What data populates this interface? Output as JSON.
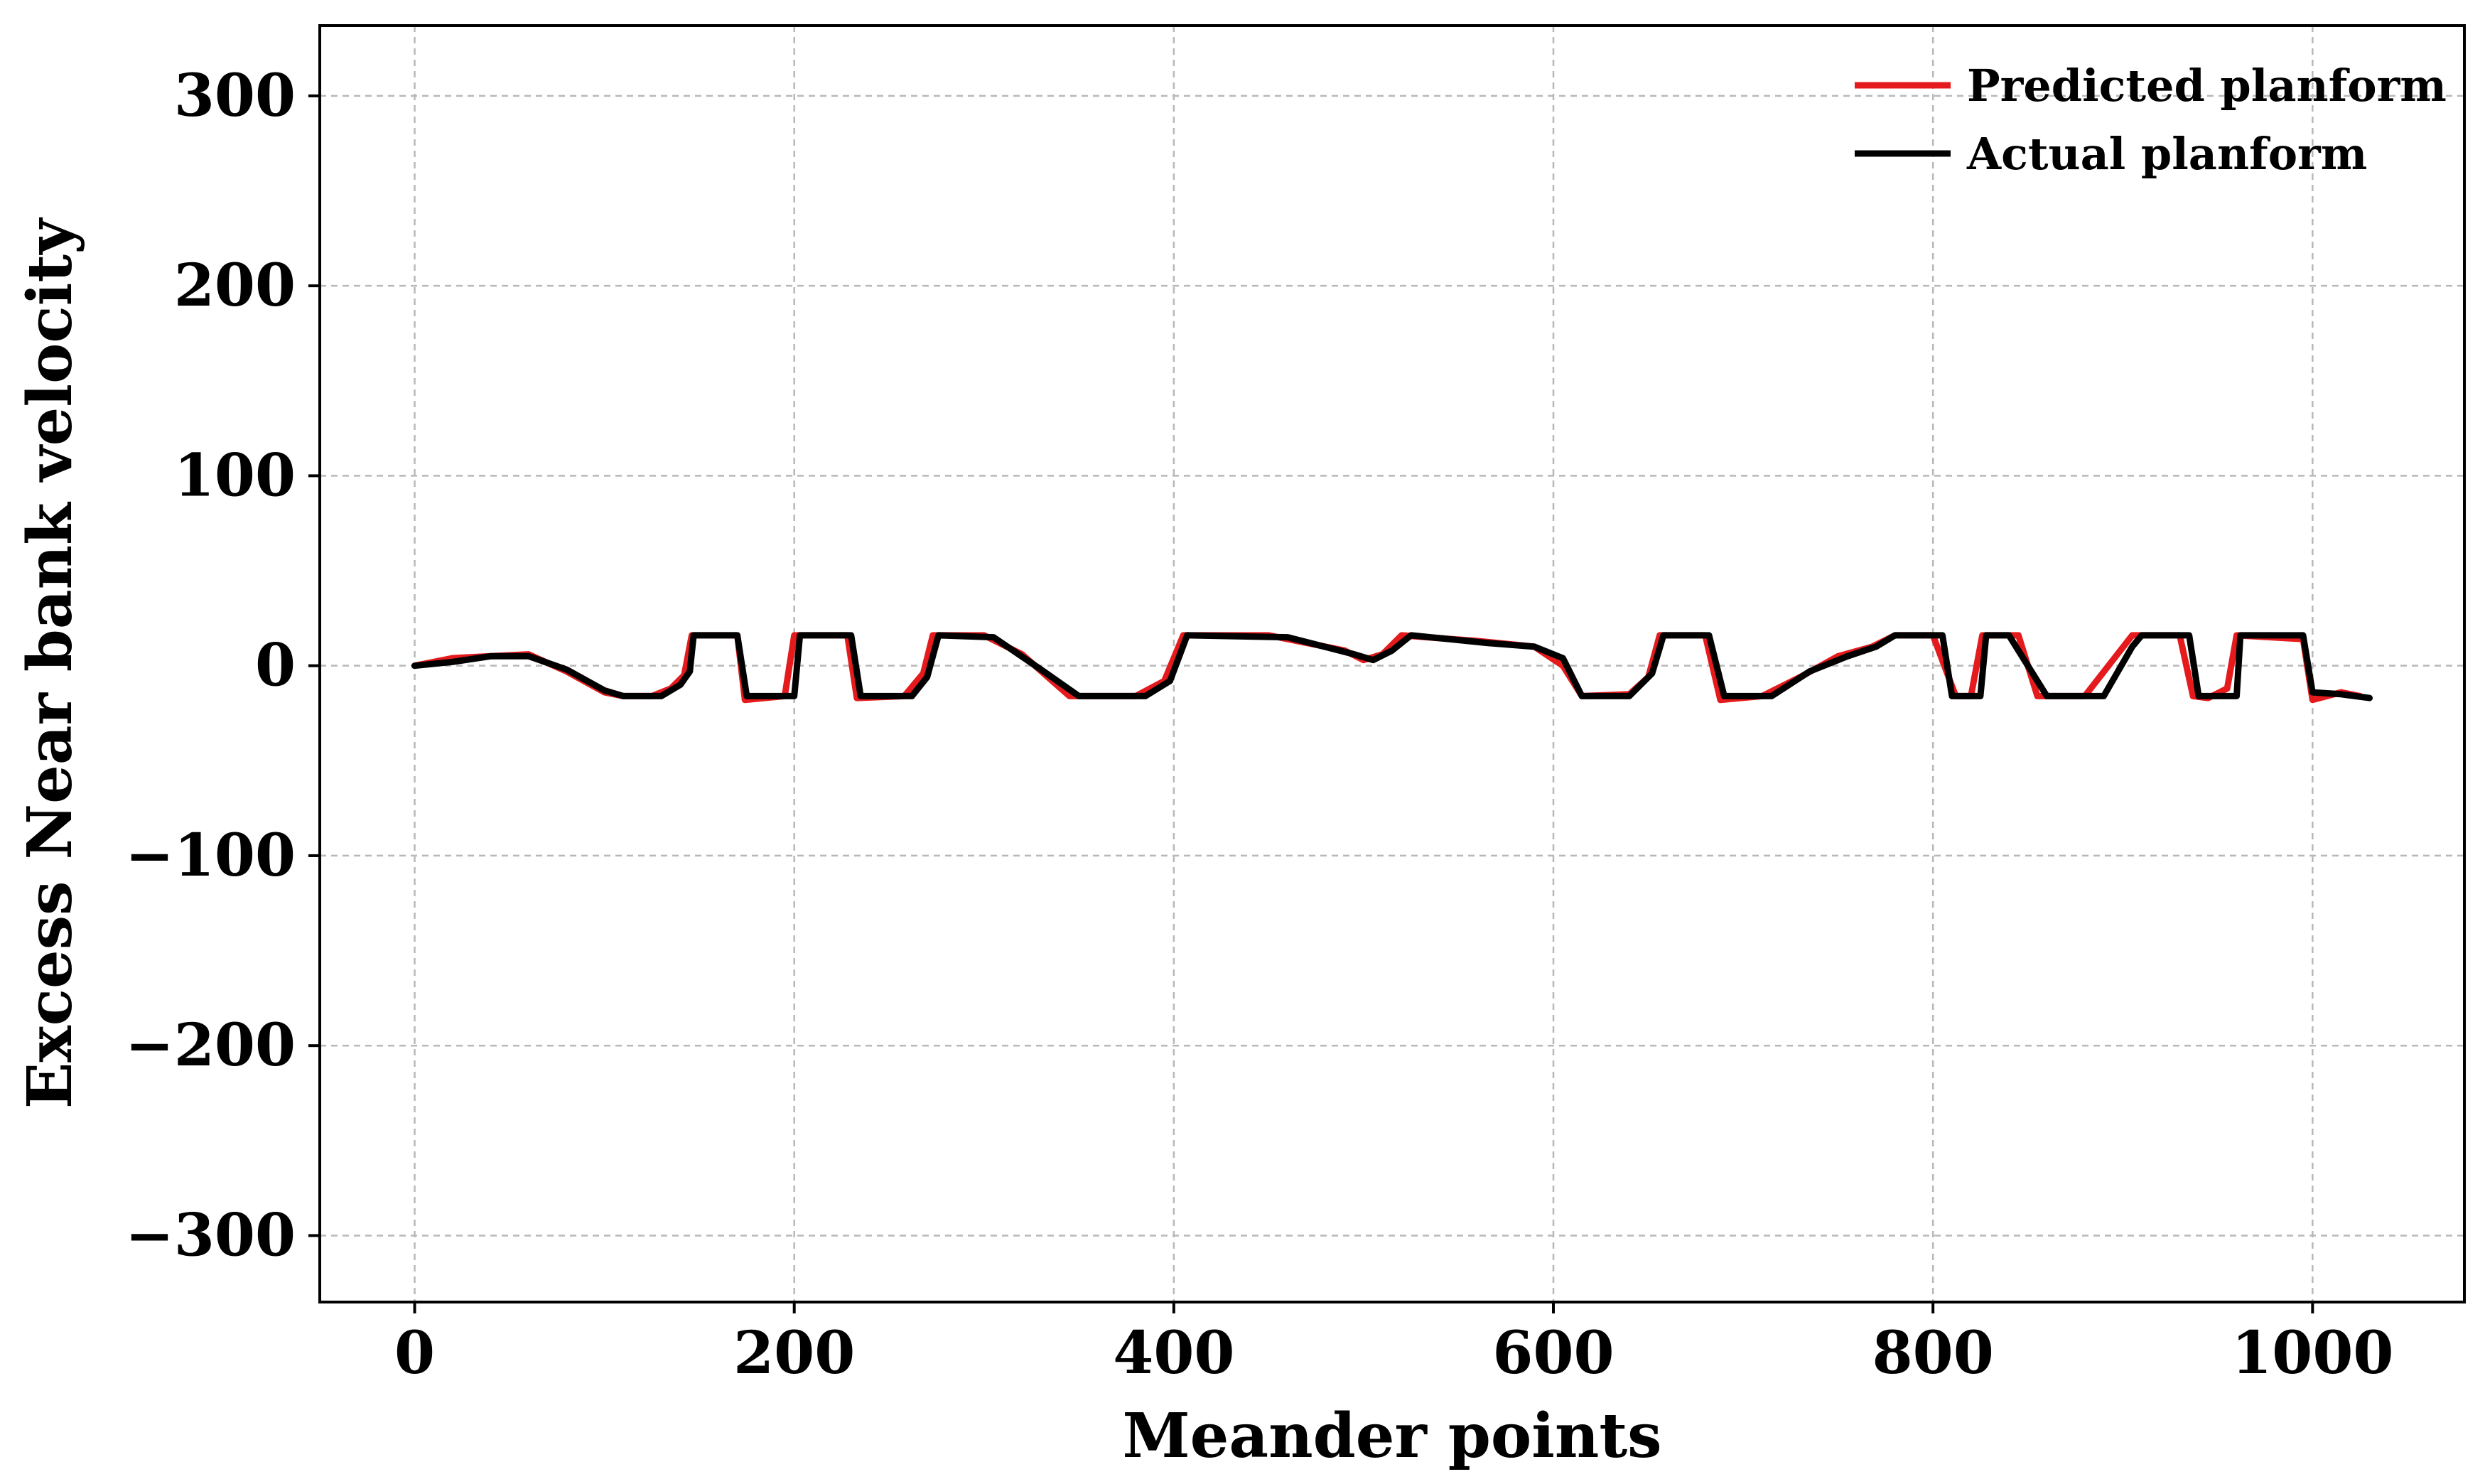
{
  "chart_data": {
    "type": "line",
    "title": "",
    "xlabel": "Meander points",
    "ylabel": "Excess Near bank velocity",
    "xlim": [
      -50,
      1080
    ],
    "ylim": [
      -335,
      337
    ],
    "xticks": [
      0,
      200,
      400,
      600,
      800,
      1000
    ],
    "yticks": [
      300,
      200,
      100,
      0,
      -100,
      -200,
      -300
    ],
    "xtick_labels": [
      "0",
      "200",
      "400",
      "600",
      "800",
      "1000"
    ],
    "ytick_labels": [
      "300",
      "200",
      "100",
      "0",
      "−100",
      "−200",
      "−300"
    ],
    "grid": true,
    "legend_position": "top-right",
    "series": [
      {
        "name": "Predicted planform",
        "color": "#e41a1c",
        "points": [
          [
            0,
            0
          ],
          [
            20,
            4
          ],
          [
            40,
            5
          ],
          [
            60,
            6
          ],
          [
            80,
            -3
          ],
          [
            100,
            -14
          ],
          [
            110,
            -16
          ],
          [
            125,
            -16
          ],
          [
            135,
            -12
          ],
          [
            142,
            -5
          ],
          [
            146,
            16
          ],
          [
            170,
            16
          ],
          [
            174,
            -18
          ],
          [
            195,
            -16
          ],
          [
            200,
            16
          ],
          [
            228,
            16
          ],
          [
            233,
            -17
          ],
          [
            258,
            -16
          ],
          [
            268,
            -4
          ],
          [
            273,
            16
          ],
          [
            300,
            16
          ],
          [
            320,
            6
          ],
          [
            345,
            -16
          ],
          [
            380,
            -16
          ],
          [
            395,
            -8
          ],
          [
            405,
            16
          ],
          [
            450,
            16
          ],
          [
            490,
            8
          ],
          [
            500,
            3
          ],
          [
            510,
            6
          ],
          [
            520,
            16
          ],
          [
            560,
            13
          ],
          [
            590,
            10
          ],
          [
            605,
            0
          ],
          [
            615,
            -16
          ],
          [
            640,
            -15
          ],
          [
            650,
            -6
          ],
          [
            656,
            16
          ],
          [
            680,
            16
          ],
          [
            688,
            -18
          ],
          [
            710,
            -16
          ],
          [
            730,
            -6
          ],
          [
            750,
            5
          ],
          [
            768,
            10
          ],
          [
            780,
            16
          ],
          [
            800,
            16
          ],
          [
            812,
            -16
          ],
          [
            820,
            -16
          ],
          [
            826,
            16
          ],
          [
            845,
            16
          ],
          [
            855,
            -16
          ],
          [
            880,
            -16
          ],
          [
            905,
            16
          ],
          [
            930,
            16
          ],
          [
            937,
            -16
          ],
          [
            945,
            -17
          ],
          [
            955,
            -12
          ],
          [
            960,
            16
          ],
          [
            995,
            14
          ],
          [
            1000,
            -18
          ],
          [
            1015,
            -14
          ],
          [
            1025,
            -16
          ]
        ]
      },
      {
        "name": "Actual planform",
        "color": "#000000",
        "points": [
          [
            0,
            0
          ],
          [
            20,
            2
          ],
          [
            40,
            5
          ],
          [
            60,
            5
          ],
          [
            80,
            -2
          ],
          [
            100,
            -13
          ],
          [
            110,
            -16
          ],
          [
            130,
            -16
          ],
          [
            140,
            -10
          ],
          [
            145,
            -3
          ],
          [
            147,
            16
          ],
          [
            170,
            16
          ],
          [
            175,
            -16
          ],
          [
            200,
            -16
          ],
          [
            203,
            16
          ],
          [
            230,
            16
          ],
          [
            235,
            -16
          ],
          [
            262,
            -16
          ],
          [
            270,
            -6
          ],
          [
            276,
            16
          ],
          [
            305,
            15
          ],
          [
            330,
            -2
          ],
          [
            350,
            -16
          ],
          [
            385,
            -16
          ],
          [
            398,
            -8
          ],
          [
            407,
            16
          ],
          [
            460,
            15
          ],
          [
            495,
            6
          ],
          [
            505,
            3
          ],
          [
            515,
            8
          ],
          [
            525,
            16
          ],
          [
            565,
            12
          ],
          [
            590,
            10
          ],
          [
            605,
            4
          ],
          [
            615,
            -16
          ],
          [
            640,
            -16
          ],
          [
            652,
            -4
          ],
          [
            658,
            16
          ],
          [
            682,
            16
          ],
          [
            690,
            -16
          ],
          [
            715,
            -16
          ],
          [
            735,
            -3
          ],
          [
            755,
            5
          ],
          [
            770,
            10
          ],
          [
            780,
            16
          ],
          [
            805,
            16
          ],
          [
            810,
            -16
          ],
          [
            825,
            -16
          ],
          [
            828,
            16
          ],
          [
            840,
            16
          ],
          [
            860,
            -16
          ],
          [
            890,
            -16
          ],
          [
            905,
            10
          ],
          [
            910,
            16
          ],
          [
            935,
            16
          ],
          [
            940,
            -16
          ],
          [
            960,
            -16
          ],
          [
            962,
            16
          ],
          [
            995,
            16
          ],
          [
            1000,
            -14
          ],
          [
            1015,
            -15
          ],
          [
            1030,
            -17
          ]
        ]
      }
    ]
  }
}
